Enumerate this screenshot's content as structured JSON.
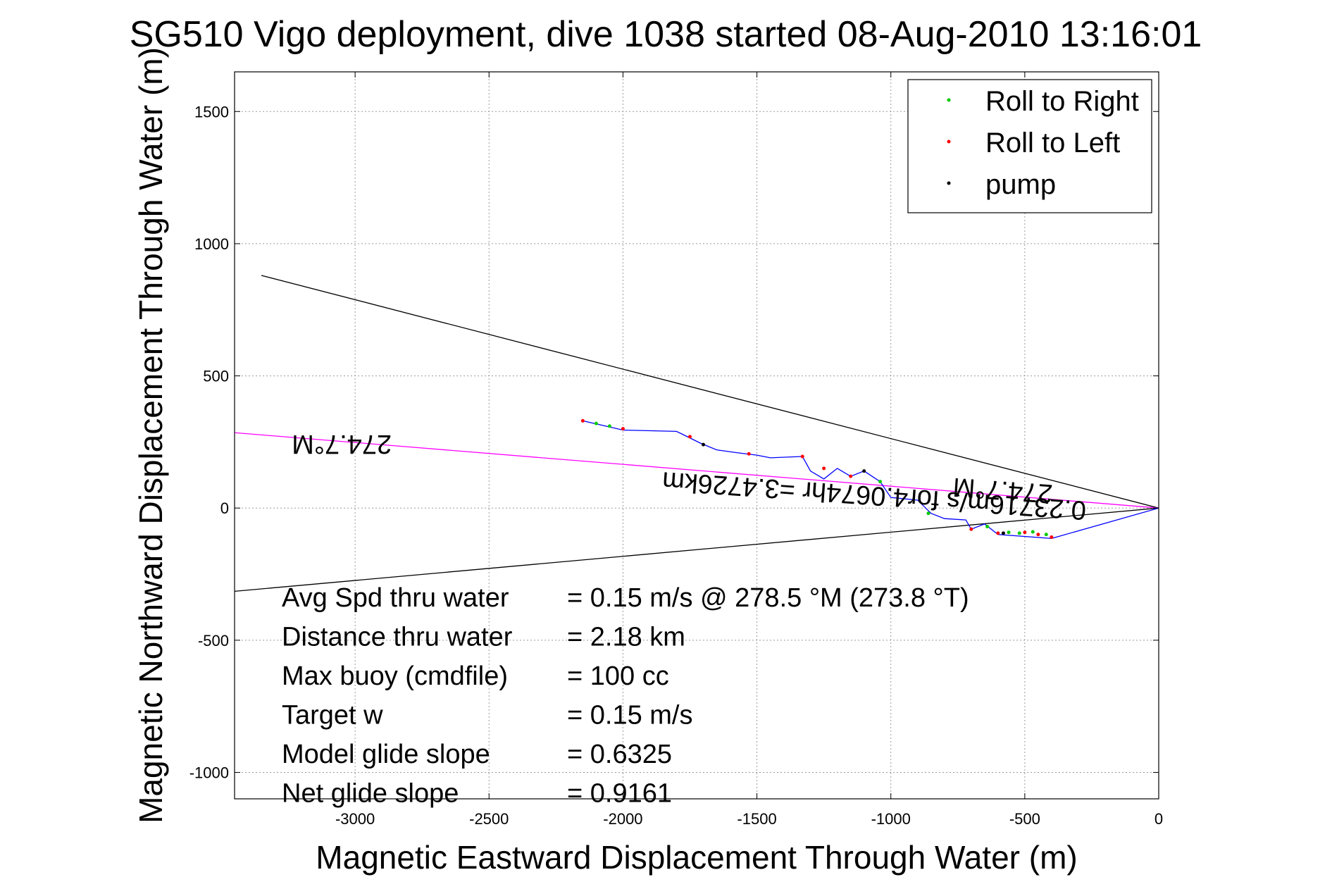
{
  "chart_data": {
    "type": "line",
    "title": "SG510 Vigo deployment, dive 1038 started 08-Aug-2010 13:16:01",
    "xlabel": "Magnetic Eastward Displacement Through Water (m)",
    "ylabel": "Magnetic Northward Displacement Through Water (m)",
    "xlim": [
      -3450,
      0
    ],
    "ylim": [
      -1100,
      1650
    ],
    "grid": true,
    "legend_position": "top-right",
    "x_ticks": [
      -3000,
      -2500,
      -2000,
      -1500,
      -1000,
      -500,
      0
    ],
    "y_ticks": [
      -1000,
      -500,
      0,
      500,
      1000,
      1500
    ],
    "x_tick_labels": [
      "-3000",
      "-2500",
      "-2000",
      "-1500",
      "-1000",
      "-500",
      "0"
    ],
    "y_tick_labels": [
      "-1000",
      "-500",
      "0",
      "500",
      "1000",
      "1500"
    ],
    "legend": [
      {
        "label": "Roll to Right",
        "color": "#00cc00"
      },
      {
        "label": "Roll to Left",
        "color": "#ff0000"
      },
      {
        "label": "pump",
        "color": "#000000"
      }
    ],
    "reference_lines": [
      {
        "color": "#000000",
        "points": [
          [
            -3350,
            880
          ],
          [
            0,
            0
          ]
        ]
      },
      {
        "color": "#000000",
        "points": [
          [
            -3450,
            -315
          ],
          [
            0,
            0
          ]
        ]
      },
      {
        "color": "#ff00ff",
        "points": [
          [
            -3450,
            285
          ],
          [
            0,
            0
          ]
        ]
      }
    ],
    "track": {
      "color": "#0000ff",
      "points": [
        [
          0,
          0
        ],
        [
          -400,
          -115
        ],
        [
          -600,
          -100
        ],
        [
          -650,
          -60
        ],
        [
          -700,
          -80
        ],
        [
          -720,
          -45
        ],
        [
          -800,
          -40
        ],
        [
          -850,
          -20
        ],
        [
          -900,
          30
        ],
        [
          -1000,
          40
        ],
        [
          -1040,
          100
        ],
        [
          -1100,
          140
        ],
        [
          -1150,
          120
        ],
        [
          -1200,
          150
        ],
        [
          -1250,
          110
        ],
        [
          -1300,
          140
        ],
        [
          -1330,
          195
        ],
        [
          -1450,
          190
        ],
        [
          -1500,
          200
        ],
        [
          -1580,
          210
        ],
        [
          -1650,
          220
        ],
        [
          -1710,
          245
        ],
        [
          -1750,
          265
        ],
        [
          -1780,
          280
        ],
        [
          -1800,
          290
        ],
        [
          -2000,
          295
        ],
        [
          -2150,
          330
        ]
      ]
    },
    "marker_points": {
      "roll_right": [
        [
          -420,
          -100
        ],
        [
          -470,
          -90
        ],
        [
          -520,
          -95
        ],
        [
          -560,
          -92
        ],
        [
          -2050,
          310
        ],
        [
          -2100,
          320
        ],
        [
          -1040,
          100
        ],
        [
          -860,
          -20
        ],
        [
          -640,
          -70
        ]
      ],
      "roll_left": [
        [
          -400,
          -110
        ],
        [
          -450,
          -100
        ],
        [
          -500,
          -92
        ],
        [
          -600,
          -95
        ],
        [
          -700,
          -80
        ],
        [
          -1150,
          120
        ],
        [
          -1250,
          150
        ],
        [
          -1330,
          195
        ],
        [
          -1530,
          205
        ],
        [
          -1750,
          270
        ],
        [
          -2000,
          300
        ],
        [
          -2150,
          330
        ]
      ],
      "pump": [
        [
          -580,
          -95
        ],
        [
          -1100,
          140
        ],
        [
          -1700,
          240
        ]
      ]
    },
    "annotations": [
      {
        "text": "274.7°M",
        "x": -3050,
        "y": 275,
        "rotate": 180
      },
      {
        "text": "274.7°M",
        "x": -580,
        "y": 100,
        "rotate": 184
      },
      {
        "text": "0.23716m/s for4.0674hr =3.4726km",
        "x": -1060,
        "y": 80,
        "rotate": 184
      }
    ],
    "stats": [
      {
        "label": "Avg Spd thru water",
        "value": "=  0.15 m/s @ 278.5 °M (273.8 °T)"
      },
      {
        "label": "Distance thru water",
        "value": "=  2.18 km"
      },
      {
        "label": "Max buoy (cmdfile)",
        "value": "= 100 cc"
      },
      {
        "label": "Target w",
        "value": "= 0.15 m/s"
      },
      {
        "label": "Model glide slope",
        "value": "= 0.6325"
      },
      {
        "label": "Net glide slope",
        "value": "= 0.9161"
      }
    ]
  }
}
